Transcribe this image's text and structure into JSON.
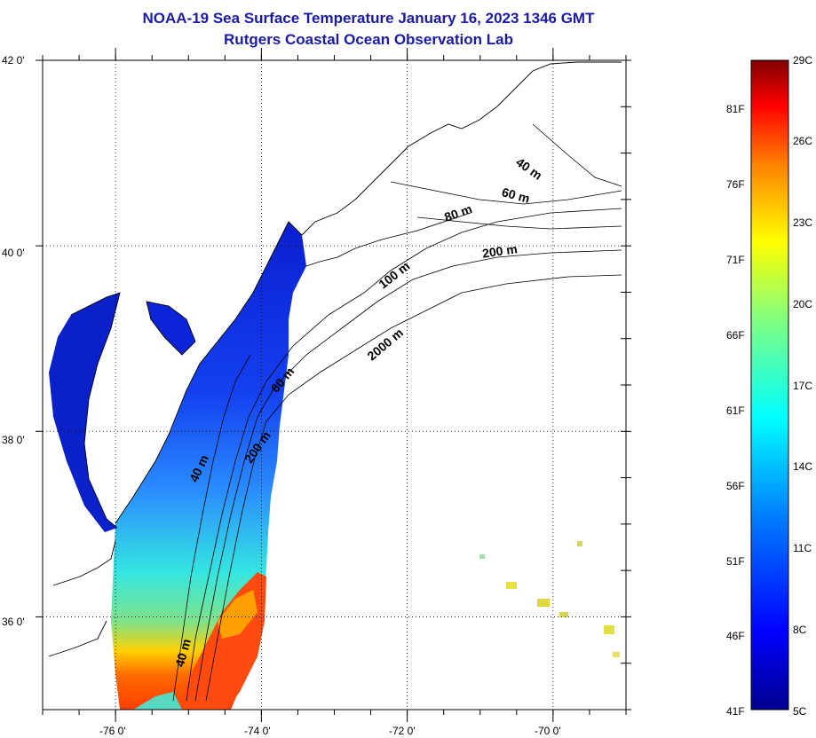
{
  "title": "NOAA-19 Sea Surface Temperature January 16, 2023 1346 GMT",
  "subtitle": "Rutgers Coastal Ocean Observation Lab",
  "map": {
    "lat_ticks": [
      {
        "value": 42,
        "label": "42 0'"
      },
      {
        "value": 40,
        "label": "40 0'"
      },
      {
        "value": 38,
        "label": "38 0'"
      },
      {
        "value": 36,
        "label": "36 0'"
      }
    ],
    "lon_ticks": [
      {
        "value": -76,
        "label": "-76 0'"
      },
      {
        "value": -74,
        "label": "-74 0'"
      },
      {
        "value": -72,
        "label": "-72 0'"
      },
      {
        "value": -70,
        "label": "-70 0'"
      }
    ],
    "lat_range": [
      35.0,
      42.0
    ],
    "lon_range": [
      -77.0,
      -69.0
    ],
    "grid": "dotted",
    "land_color": "#ffffff",
    "contour_labels": [
      "40 m",
      "60 m",
      "80 m",
      "200 m",
      "100 m",
      "2000 m",
      "60 m",
      "40 m",
      "200 m",
      "40 m"
    ]
  },
  "colorbar": {
    "fahrenheit_labels": [
      "81F",
      "76F",
      "71F",
      "66F",
      "61F",
      "56F",
      "51F",
      "46F",
      "41F"
    ],
    "fahrenheit_values": [
      81,
      76,
      71,
      66,
      61,
      56,
      51,
      46,
      41
    ],
    "celsius_labels": [
      "29C",
      "26C",
      "23C",
      "20C",
      "17C",
      "14C",
      "11C",
      "8C",
      "5C"
    ],
    "celsius_values": [
      29,
      26,
      23,
      20,
      17,
      14,
      11,
      8,
      5
    ],
    "range_c": [
      5,
      29
    ],
    "colors": [
      "#00008f",
      "#0000ff",
      "#0080ff",
      "#00ffff",
      "#80ff80",
      "#ffff00",
      "#ff8000",
      "#ff0000",
      "#800000"
    ]
  }
}
